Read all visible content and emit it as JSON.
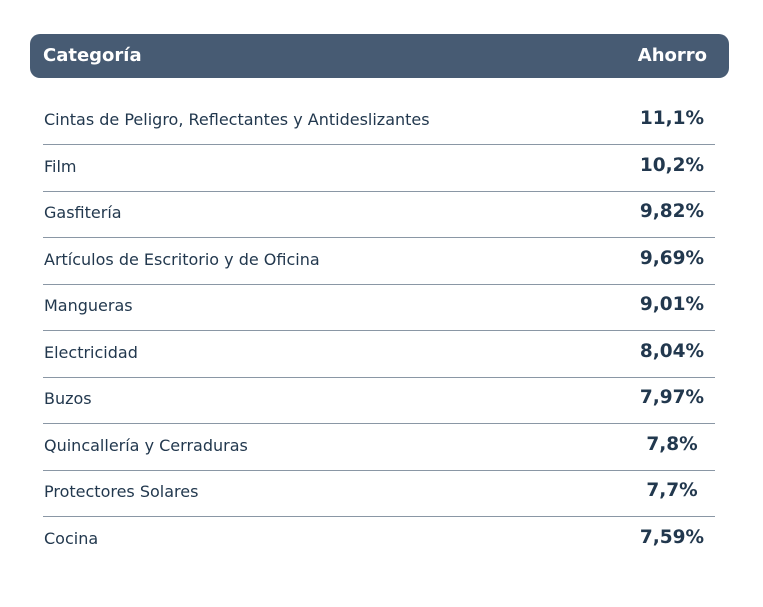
{
  "table": {
    "header": [
      "Categoría",
      "Ahorro"
    ],
    "rows": [
      [
        "Cintas de Peligro, Reflectantes y Antideslizantes",
        "11,1%"
      ],
      [
        "Film",
        "10,2%"
      ],
      [
        "Gasfitería",
        "9,82%"
      ],
      [
        "Artículos de Escritorio y de Oficina",
        "9,69%"
      ],
      [
        "Mangueras",
        "9,01%"
      ],
      [
        "Electricidad",
        "8,04%"
      ],
      [
        "Buzos",
        "7,97%"
      ],
      [
        "Quincallería y Cerraduras",
        "7,8%"
      ],
      [
        "Protectores Solares",
        "7,7%"
      ],
      [
        "Cocina",
        "7,59%"
      ]
    ]
  }
}
